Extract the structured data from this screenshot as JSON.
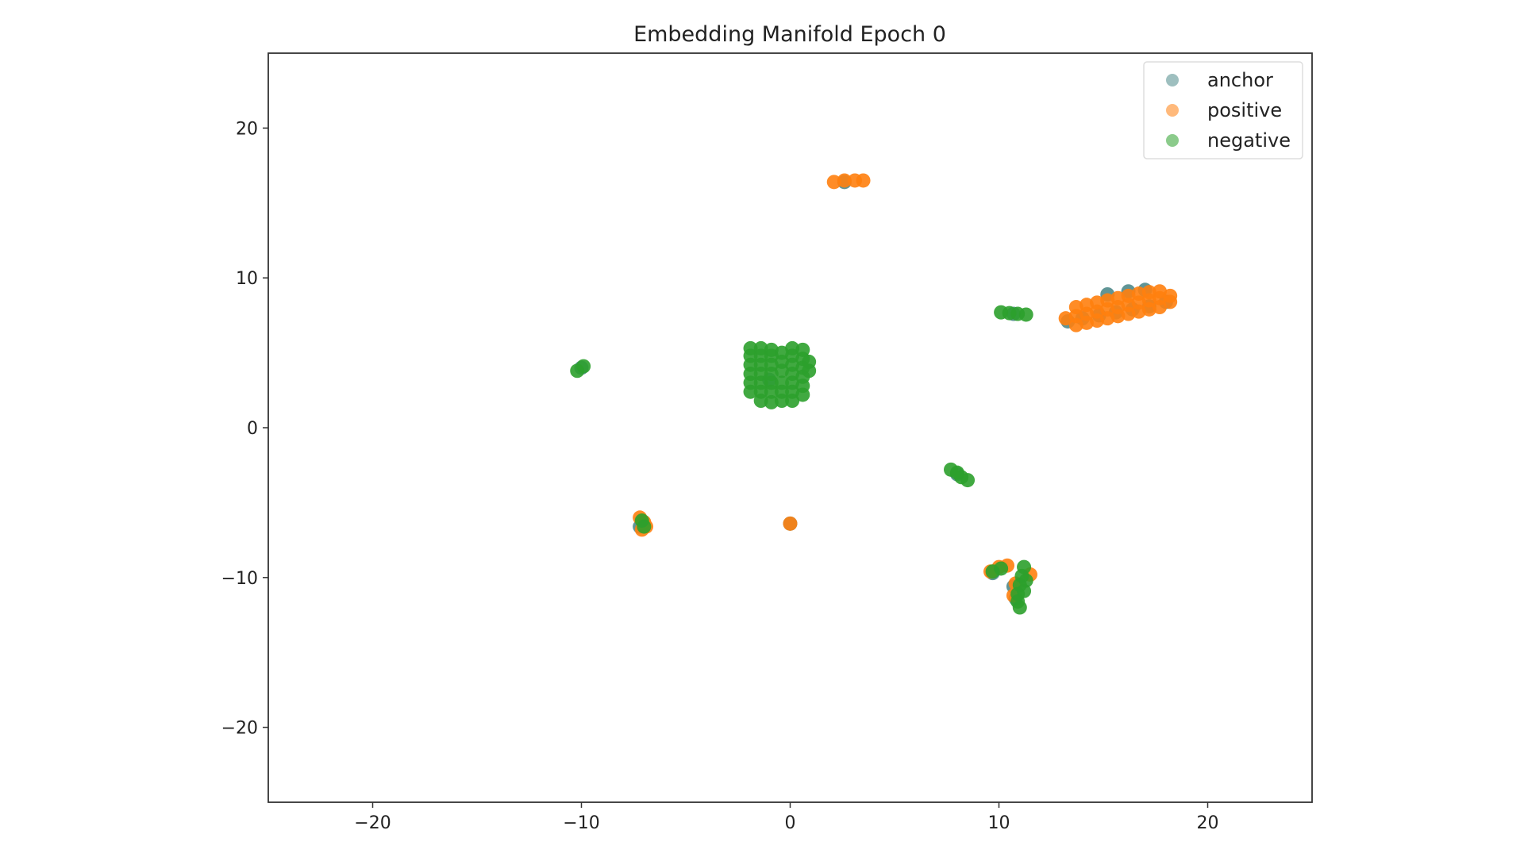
{
  "chart_data": {
    "type": "scatter",
    "title": "Embedding Manifold Epoch 0",
    "xlabel": "",
    "ylabel": "",
    "xlim": [
      -25,
      25
    ],
    "ylim": [
      -25,
      25
    ],
    "grid": false,
    "legend_placement": "top-right",
    "x_ticks": [
      -20,
      -10,
      0,
      10,
      20
    ],
    "y_ticks": [
      20,
      10,
      0,
      -10,
      -20
    ],
    "x_tick_labels": [
      "−20",
      "−10",
      "0",
      "10",
      "20"
    ],
    "y_tick_labels": [
      "20",
      "10",
      "0",
      "−10",
      "−20"
    ],
    "series": [
      {
        "name": "anchor",
        "color": "#4f8a8b",
        "points": [
          [
            13.3,
            7.1
          ],
          [
            14.0,
            7.3
          ],
          [
            14.8,
            7.5
          ],
          [
            15.6,
            7.7
          ],
          [
            16.4,
            7.9
          ],
          [
            17.2,
            8.1
          ],
          [
            18.0,
            8.4
          ],
          [
            15.2,
            8.9
          ],
          [
            16.2,
            9.1
          ],
          [
            17.0,
            9.2
          ],
          [
            9.7,
            -9.7
          ],
          [
            10.7,
            -10.6
          ],
          [
            10.8,
            -11.4
          ],
          [
            -7.2,
            -6.6
          ],
          [
            0.0,
            -6.4
          ],
          [
            2.6,
            16.4
          ],
          [
            -1.0,
            3.2
          ],
          [
            8.0,
            -3.1
          ],
          [
            10.7,
            7.6
          ],
          [
            -10.0,
            4.0
          ]
        ]
      },
      {
        "name": "positive",
        "color": "#ff7f0e",
        "points": [
          [
            2.1,
            16.4
          ],
          [
            2.6,
            16.5
          ],
          [
            3.1,
            16.5
          ],
          [
            3.5,
            16.5
          ],
          [
            13.2,
            7.3
          ],
          [
            13.7,
            6.85
          ],
          [
            13.7,
            7.45
          ],
          [
            13.7,
            8.05
          ],
          [
            14.2,
            7.0
          ],
          [
            14.2,
            7.6
          ],
          [
            14.2,
            8.2
          ],
          [
            14.7,
            7.15
          ],
          [
            14.7,
            7.75
          ],
          [
            14.7,
            8.35
          ],
          [
            15.2,
            7.3
          ],
          [
            15.2,
            7.9
          ],
          [
            15.2,
            8.5
          ],
          [
            15.7,
            7.45
          ],
          [
            15.7,
            8.05
          ],
          [
            15.7,
            8.65
          ],
          [
            16.2,
            7.6
          ],
          [
            16.2,
            8.2
          ],
          [
            16.2,
            8.8
          ],
          [
            16.7,
            7.75
          ],
          [
            16.7,
            8.35
          ],
          [
            16.7,
            8.95
          ],
          [
            17.2,
            7.9
          ],
          [
            17.2,
            8.5
          ],
          [
            17.2,
            9.05
          ],
          [
            17.7,
            8.05
          ],
          [
            17.7,
            8.65
          ],
          [
            17.7,
            9.1
          ],
          [
            18.2,
            8.4
          ],
          [
            18.2,
            8.8
          ],
          [
            -7.2,
            -6.0
          ],
          [
            -7.0,
            -6.3
          ],
          [
            -7.1,
            -6.8
          ],
          [
            -6.9,
            -6.6
          ],
          [
            0.0,
            -6.4
          ],
          [
            9.6,
            -9.6
          ],
          [
            10.0,
            -9.3
          ],
          [
            10.4,
            -9.2
          ],
          [
            10.8,
            -10.4
          ],
          [
            10.7,
            -11.2
          ],
          [
            11.5,
            -9.8
          ]
        ]
      },
      {
        "name": "negative",
        "color": "#2ca02c",
        "points": [
          [
            -10.2,
            3.8
          ],
          [
            -9.9,
            4.1
          ],
          [
            10.1,
            7.7
          ],
          [
            10.5,
            7.65
          ],
          [
            10.9,
            7.6
          ],
          [
            11.3,
            7.55
          ],
          [
            -1.9,
            2.4
          ],
          [
            -1.9,
            3.0
          ],
          [
            -1.9,
            3.6
          ],
          [
            -1.9,
            4.2
          ],
          [
            -1.9,
            4.8
          ],
          [
            -1.9,
            5.3
          ],
          [
            -1.4,
            1.8
          ],
          [
            -1.4,
            2.4
          ],
          [
            -1.4,
            3.0
          ],
          [
            -1.4,
            3.6
          ],
          [
            -1.4,
            4.2
          ],
          [
            -1.4,
            4.8
          ],
          [
            -1.4,
            5.3
          ],
          [
            -0.9,
            1.7
          ],
          [
            -0.9,
            2.4
          ],
          [
            -0.9,
            3.0
          ],
          [
            -0.9,
            3.6
          ],
          [
            -0.9,
            4.2
          ],
          [
            -0.9,
            4.8
          ],
          [
            -0.9,
            5.2
          ],
          [
            -0.4,
            1.8
          ],
          [
            -0.4,
            2.4
          ],
          [
            -0.4,
            3.0
          ],
          [
            -0.4,
            3.8
          ],
          [
            -0.4,
            4.4
          ],
          [
            -0.4,
            5.0
          ],
          [
            0.1,
            1.8
          ],
          [
            0.1,
            2.4
          ],
          [
            0.1,
            3.0
          ],
          [
            0.1,
            3.6
          ],
          [
            0.1,
            4.2
          ],
          [
            0.1,
            4.8
          ],
          [
            0.1,
            5.3
          ],
          [
            0.6,
            2.2
          ],
          [
            0.6,
            2.8
          ],
          [
            0.6,
            3.4
          ],
          [
            0.6,
            4.0
          ],
          [
            0.6,
            4.6
          ],
          [
            0.6,
            5.2
          ],
          [
            0.9,
            3.8
          ],
          [
            0.9,
            4.4
          ],
          [
            7.7,
            -2.8
          ],
          [
            8.0,
            -3.0
          ],
          [
            8.2,
            -3.3
          ],
          [
            8.5,
            -3.5
          ],
          [
            -7.1,
            -6.2
          ],
          [
            -7.0,
            -6.6
          ],
          [
            9.7,
            -9.6
          ],
          [
            10.1,
            -9.4
          ],
          [
            11.2,
            -9.3
          ],
          [
            11.1,
            -9.9
          ],
          [
            11.0,
            -10.5
          ],
          [
            10.9,
            -11.1
          ],
          [
            10.9,
            -11.6
          ],
          [
            11.3,
            -10.2
          ],
          [
            11.2,
            -10.9
          ],
          [
            11.0,
            -12.0
          ]
        ]
      }
    ]
  }
}
